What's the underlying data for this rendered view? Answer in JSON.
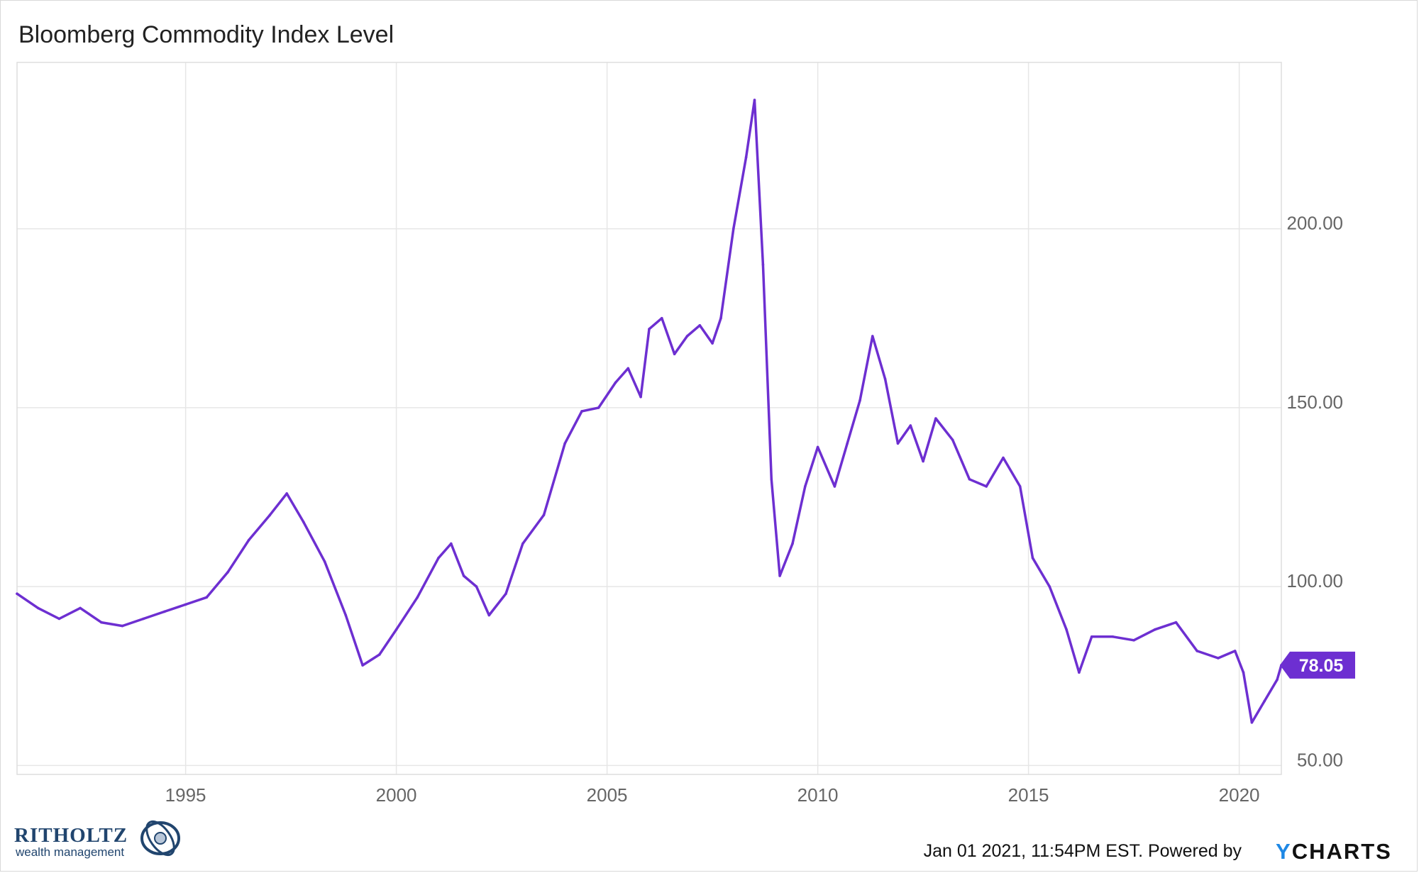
{
  "chart_data": {
    "type": "line",
    "title": "Bloomberg Commodity Index Level",
    "x_ticks": [
      "1995",
      "2000",
      "2005",
      "2010",
      "2015",
      "2020"
    ],
    "y_ticks": [
      "50.00",
      "100.00",
      "150.00",
      "200.00"
    ],
    "xlim": [
      1991.0,
      2021.0
    ],
    "ylim": [
      47.5,
      246.5
    ],
    "grid": true,
    "last_value_label": "78.05",
    "series": [
      {
        "color": "#6d2fd1",
        "x": [
          1991.0,
          1991.5,
          1992.0,
          1992.5,
          1993.0,
          1993.5,
          1994.0,
          1994.5,
          1995.0,
          1995.5,
          1996.0,
          1996.5,
          1997.0,
          1997.4,
          1997.8,
          1998.3,
          1998.8,
          1999.2,
          1999.6,
          2000.0,
          2000.5,
          2001.0,
          2001.3,
          2001.6,
          2001.9,
          2002.2,
          2002.6,
          2003.0,
          2003.5,
          2004.0,
          2004.4,
          2004.8,
          2005.2,
          2005.5,
          2005.8,
          2006.0,
          2006.3,
          2006.6,
          2006.9,
          2007.2,
          2007.5,
          2007.7,
          2008.0,
          2008.3,
          2008.5,
          2008.7,
          2008.9,
          2009.1,
          2009.4,
          2009.7,
          2010.0,
          2010.4,
          2010.7,
          2011.0,
          2011.3,
          2011.6,
          2011.9,
          2012.2,
          2012.5,
          2012.8,
          2013.2,
          2013.6,
          2014.0,
          2014.4,
          2014.8,
          2015.1,
          2015.5,
          2015.9,
          2016.2,
          2016.5,
          2017.0,
          2017.5,
          2018.0,
          2018.5,
          2019.0,
          2019.5,
          2019.9,
          2020.1,
          2020.3,
          2020.6,
          2020.9,
          2021.0
        ],
        "y": [
          98,
          94,
          91,
          94,
          90,
          89,
          91,
          93,
          95,
          97,
          104,
          113,
          120,
          126,
          118,
          107,
          92,
          78,
          81,
          88,
          97,
          108,
          112,
          103,
          100,
          92,
          98,
          112,
          120,
          140,
          149,
          150,
          157,
          161,
          153,
          172,
          175,
          165,
          170,
          173,
          168,
          175,
          200,
          220,
          236,
          190,
          130,
          103,
          112,
          128,
          139,
          128,
          140,
          152,
          170,
          158,
          140,
          145,
          135,
          147,
          141,
          130,
          128,
          136,
          128,
          108,
          100,
          88,
          76,
          86,
          86,
          85,
          88,
          90,
          82,
          80,
          82,
          76,
          62,
          68,
          74,
          78.05
        ]
      }
    ]
  },
  "footer": {
    "timestamp": "Jan 01 2021, 11:54PM EST. Powered by",
    "ycharts_y": "Y",
    "ycharts_rest": "CHARTS"
  },
  "brand": {
    "name": "RITHOLTZ",
    "subtitle": "wealth management"
  }
}
